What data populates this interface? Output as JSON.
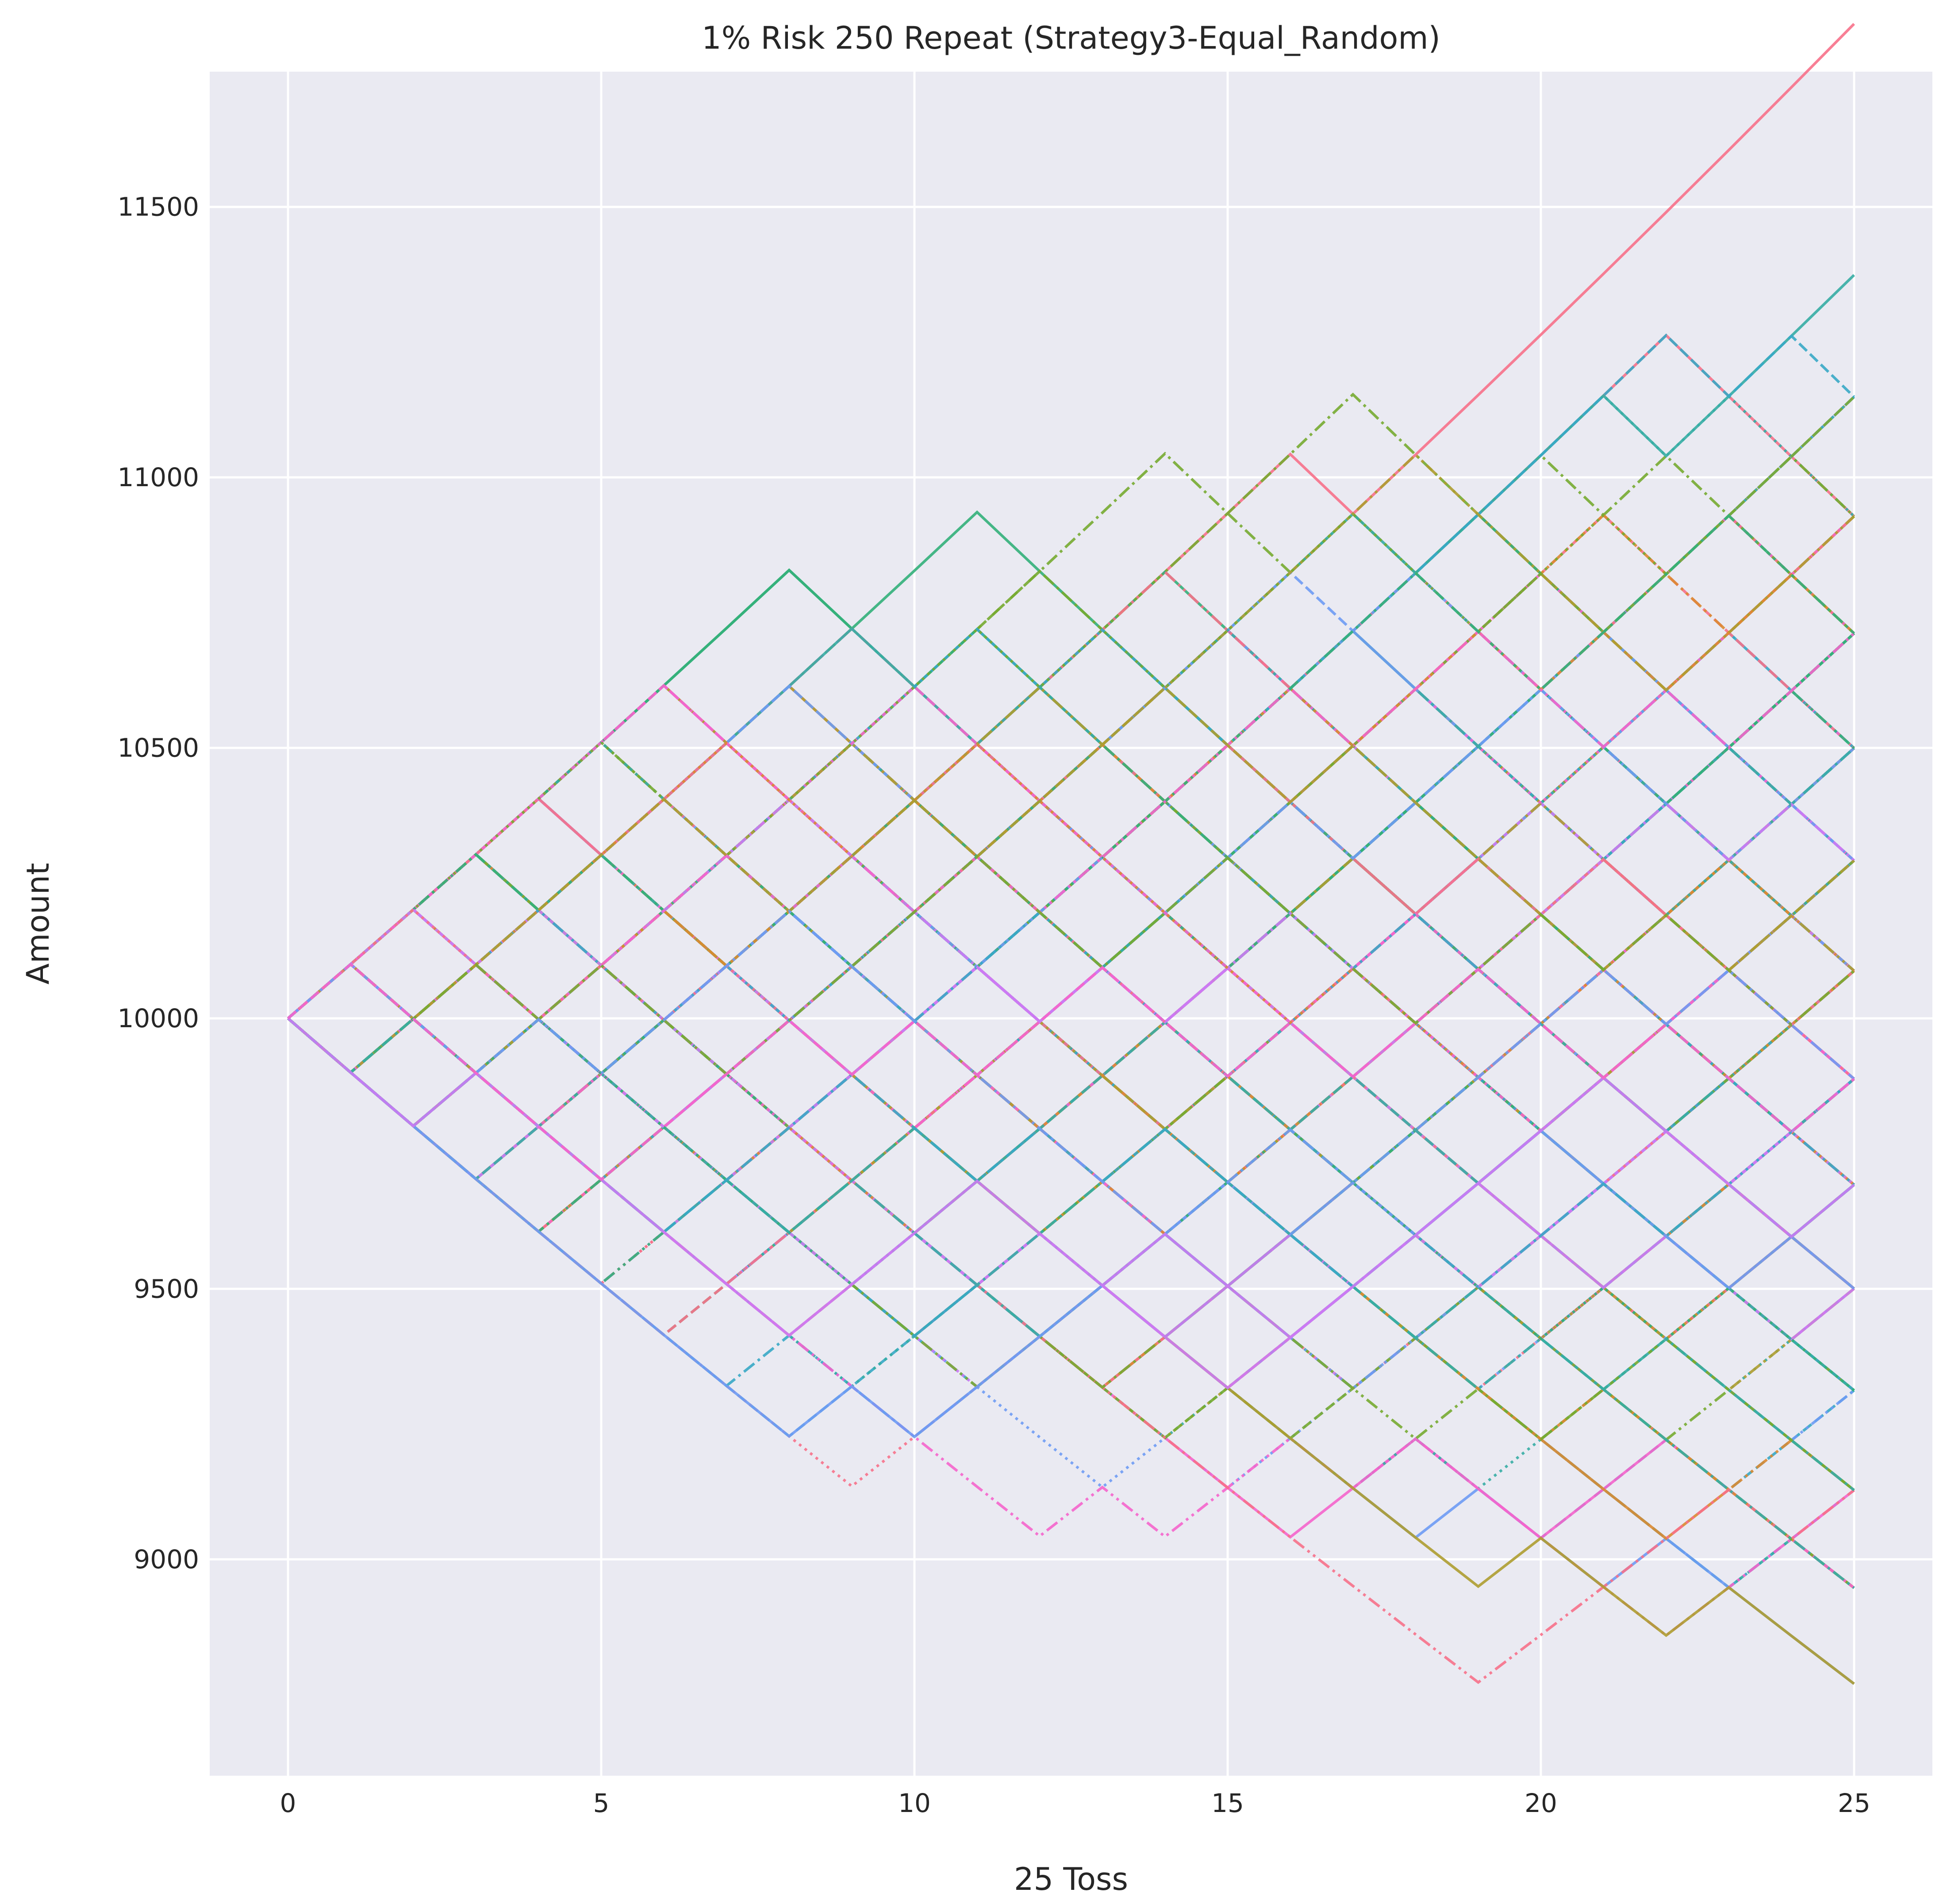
{
  "colors": {
    "plot_background": "#eaeaf2",
    "grid": "#ffffff",
    "text": "#262626",
    "series_palette": [
      "#f77189",
      "#dc8932",
      "#ae9d31",
      "#77ab31",
      "#33b07a",
      "#36ada4",
      "#38a9c5",
      "#6e9bf4",
      "#cc7af4",
      "#f565cc"
    ]
  },
  "chart_data": {
    "type": "line",
    "title": "1% Risk 250 Repeat (Strategy3-Equal_Random)",
    "xlabel": "25 Toss",
    "ylabel": "Amount",
    "xlim": [
      -1.25,
      26.25
    ],
    "ylim": [
      8600,
      11750
    ],
    "xticks": [
      0,
      5,
      10,
      15,
      20,
      25
    ],
    "yticks": [
      9000,
      9500,
      10000,
      10500,
      11000,
      11500
    ],
    "grid": true,
    "legend": "none",
    "start_value": 10000,
    "risk_fraction": 0.01,
    "num_tosses": 25,
    "num_runs": 250,
    "series_note": "250 random equal-probability win/lose paths; each toss multiplies amount by 1.01 (win) or 0.99 (lose)"
  }
}
